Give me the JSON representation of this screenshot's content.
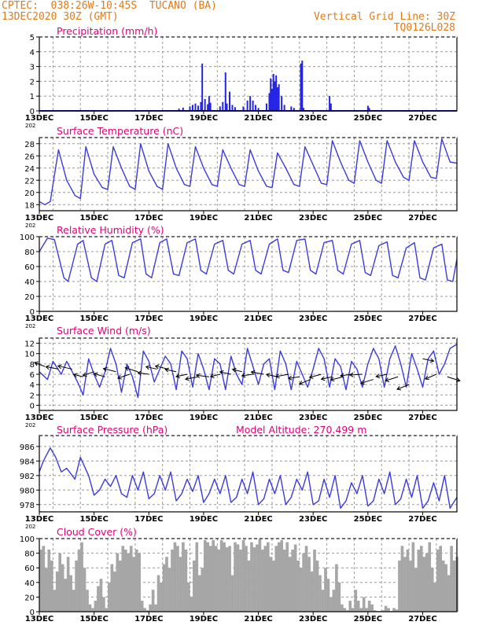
{
  "header": {
    "left_line1": "CPTEC:  038:26W-10:45S  TUCANO (BA)",
    "left_line2": "13DEC2020 30Z (GMT)",
    "right_line1": "Vertical Grid Line: 30Z",
    "right_line2": "TQ0126L028",
    "color": "#e07b1a"
  },
  "colors": {
    "title": "#e0007a",
    "line": "#3b3bdc",
    "bar": "#2424e6",
    "cloud": "#a6a6a6",
    "grid": "#9a9a9a",
    "arrow": "#000000"
  },
  "x_ticks": [
    "13DEC",
    "15DEC",
    "17DEC",
    "19DEC",
    "21DEC",
    "23DEC",
    "25DEC",
    "27DEC"
  ],
  "year_stub": "202",
  "chart_data": [
    {
      "type": "bar",
      "title": "Precipitation (mm/h)",
      "ylim": [
        0,
        5
      ],
      "yticks": [
        0,
        1,
        2,
        3,
        4,
        5
      ],
      "xlim": [
        0,
        15.25
      ],
      "events": [
        [
          5.1,
          0.15
        ],
        [
          5.25,
          0.22
        ],
        [
          5.5,
          0.3
        ],
        [
          5.6,
          0.4
        ],
        [
          5.7,
          0.5
        ],
        [
          5.8,
          0.35
        ],
        [
          5.9,
          0.6
        ],
        [
          5.95,
          3.2
        ],
        [
          6.05,
          0.8
        ],
        [
          6.15,
          0.45
        ],
        [
          6.2,
          1.0
        ],
        [
          6.25,
          0.55
        ],
        [
          6.6,
          0.3
        ],
        [
          6.7,
          0.6
        ],
        [
          6.8,
          2.6
        ],
        [
          6.85,
          0.5
        ],
        [
          6.95,
          1.3
        ],
        [
          7.05,
          0.4
        ],
        [
          7.15,
          0.25
        ],
        [
          7.45,
          0.3
        ],
        [
          7.6,
          0.7
        ],
        [
          7.7,
          1.0
        ],
        [
          7.8,
          0.7
        ],
        [
          7.9,
          0.4
        ],
        [
          8.0,
          0.2
        ],
        [
          8.3,
          0.5
        ],
        [
          8.4,
          1.2
        ],
        [
          8.45,
          2.2
        ],
        [
          8.5,
          1.5
        ],
        [
          8.55,
          2.5
        ],
        [
          8.6,
          2.0
        ],
        [
          8.65,
          2.4
        ],
        [
          8.7,
          1.6
        ],
        [
          8.75,
          1.8
        ],
        [
          8.85,
          1.0
        ],
        [
          8.95,
          0.4
        ],
        [
          9.2,
          0.3
        ],
        [
          9.3,
          0.2
        ],
        [
          9.55,
          3.2
        ],
        [
          9.6,
          3.4
        ],
        [
          9.65,
          0.2
        ],
        [
          10.6,
          1.0
        ],
        [
          10.65,
          0.5
        ],
        [
          12.0,
          0.35
        ],
        [
          12.05,
          0.2
        ]
      ]
    },
    {
      "type": "line",
      "title": "Surface Temperature (nC)",
      "ylim": [
        17,
        29
      ],
      "yticks": [
        18,
        20,
        22,
        24,
        26,
        28
      ],
      "xlim": [
        0,
        15.25
      ],
      "x": [
        0,
        0.2,
        0.4,
        0.7,
        1.0,
        1.3,
        1.5,
        1.7,
        2.0,
        2.3,
        2.5,
        2.7,
        3.0,
        3.3,
        3.5,
        3.7,
        4.0,
        4.3,
        4.5,
        4.7,
        5.0,
        5.3,
        5.5,
        5.7,
        6.0,
        6.3,
        6.5,
        6.7,
        7.0,
        7.3,
        7.5,
        7.7,
        8.0,
        8.3,
        8.5,
        8.7,
        9.0,
        9.3,
        9.5,
        9.7,
        10.0,
        10.3,
        10.5,
        10.7,
        11.0,
        11.3,
        11.5,
        11.7,
        12.0,
        12.3,
        12.5,
        12.7,
        13.0,
        13.3,
        13.5,
        13.7,
        14.0,
        14.3,
        14.5,
        14.7,
        15.0,
        15.25
      ],
      "y": [
        18.5,
        18.0,
        18.5,
        27.0,
        22.0,
        19.5,
        19.0,
        27.5,
        23.0,
        20.8,
        20.5,
        27.5,
        24.0,
        21.0,
        20.5,
        28.0,
        23.5,
        21.0,
        20.5,
        28.0,
        24.0,
        21.3,
        21.0,
        27.5,
        24.0,
        21.3,
        21.0,
        27.0,
        24.0,
        21.3,
        21.0,
        27.0,
        23.5,
        21.0,
        20.8,
        26.5,
        24.0,
        21.3,
        21.0,
        27.5,
        24.5,
        21.5,
        21.3,
        28.5,
        25.0,
        22.0,
        21.5,
        28.5,
        25.0,
        22.0,
        21.5,
        28.5,
        25.0,
        22.5,
        22.0,
        28.5,
        25.0,
        22.5,
        22.3,
        28.8,
        25.0,
        24.8
      ]
    },
    {
      "type": "line",
      "title": "Relative Humidity (%)",
      "ylim": [
        0,
        100
      ],
      "yticks": [
        0,
        20,
        40,
        60,
        80,
        100
      ],
      "xlim": [
        0,
        15.25
      ],
      "x": [
        0,
        0.3,
        0.55,
        0.9,
        1.05,
        1.4,
        1.6,
        1.9,
        2.1,
        2.4,
        2.65,
        2.9,
        3.1,
        3.4,
        3.7,
        3.9,
        4.1,
        4.4,
        4.65,
        4.9,
        5.1,
        5.4,
        5.7,
        5.9,
        6.1,
        6.4,
        6.7,
        6.9,
        7.1,
        7.4,
        7.7,
        7.9,
        8.1,
        8.4,
        8.7,
        8.9,
        9.1,
        9.4,
        9.7,
        9.9,
        10.1,
        10.4,
        10.7,
        10.9,
        11.1,
        11.4,
        11.7,
        11.9,
        12.1,
        12.4,
        12.7,
        12.9,
        13.1,
        13.4,
        13.7,
        13.9,
        14.1,
        14.4,
        14.7,
        14.9,
        15.1,
        15.25
      ],
      "y": [
        80,
        98,
        96,
        45,
        40,
        90,
        95,
        45,
        40,
        90,
        95,
        48,
        45,
        92,
        97,
        50,
        45,
        92,
        97,
        50,
        48,
        92,
        97,
        55,
        50,
        90,
        95,
        55,
        50,
        90,
        95,
        55,
        50,
        90,
        97,
        55,
        52,
        95,
        97,
        55,
        50,
        92,
        95,
        55,
        50,
        90,
        95,
        52,
        48,
        88,
        93,
        48,
        45,
        85,
        92,
        45,
        42,
        85,
        90,
        42,
        40,
        70
      ]
    },
    {
      "type": "line",
      "title": "Surface Wind (m/s)",
      "ylim": [
        -1,
        13
      ],
      "yticks": [
        0,
        2,
        4,
        6,
        8,
        10,
        12
      ],
      "xlim": [
        0,
        15.25
      ],
      "x": [
        0,
        0.3,
        0.5,
        0.8,
        1.0,
        1.2,
        1.4,
        1.6,
        1.8,
        2.0,
        2.2,
        2.4,
        2.6,
        2.8,
        3.0,
        3.2,
        3.4,
        3.6,
        3.8,
        4.0,
        4.2,
        4.4,
        4.6,
        4.8,
        5.0,
        5.2,
        5.4,
        5.6,
        5.8,
        6.0,
        6.2,
        6.4,
        6.6,
        6.8,
        7.0,
        7.2,
        7.4,
        7.6,
        7.8,
        8.0,
        8.2,
        8.4,
        8.6,
        8.8,
        9.0,
        9.2,
        9.4,
        9.6,
        9.8,
        10.0,
        10.2,
        10.4,
        10.6,
        10.8,
        11.0,
        11.2,
        11.4,
        11.6,
        11.8,
        12.0,
        12.2,
        12.4,
        12.6,
        12.8,
        13.0,
        13.2,
        13.4,
        13.6,
        13.8,
        14.0,
        14.2,
        14.4,
        14.6,
        14.8,
        15.0,
        15.25
      ],
      "y": [
        6.5,
        5.0,
        8.5,
        6.0,
        8.5,
        6.5,
        4.5,
        2.0,
        9.0,
        6.0,
        3.5,
        6.5,
        11.0,
        8.0,
        2.5,
        8.0,
        5.5,
        1.5,
        10.5,
        8.5,
        4.5,
        7.0,
        9.5,
        8.0,
        3.0,
        10.5,
        9.0,
        3.5,
        10.0,
        7.0,
        3.0,
        9.0,
        8.0,
        3.0,
        9.5,
        6.0,
        4.0,
        11.0,
        7.5,
        4.0,
        8.0,
        9.0,
        3.0,
        10.5,
        8.0,
        3.0,
        8.5,
        6.0,
        3.5,
        7.0,
        11.0,
        9.0,
        3.5,
        9.0,
        7.5,
        3.0,
        8.5,
        7.0,
        3.5,
        8.0,
        11.0,
        9.0,
        3.5,
        9.0,
        11.5,
        8.0,
        3.5,
        10.0,
        7.0,
        3.5,
        9.0,
        10.5,
        6.0,
        8.0,
        11.0,
        11.8
      ],
      "vectors": [
        [
          0.2,
          7.5,
          -13,
          -5
        ],
        [
          0.7,
          7.0,
          -16,
          -3
        ],
        [
          1.2,
          7.0,
          -18,
          -4
        ],
        [
          1.6,
          5.5,
          -12,
          -3
        ],
        [
          2.0,
          6.5,
          -14,
          5
        ],
        [
          2.4,
          5.5,
          -14,
          -4
        ],
        [
          2.8,
          6.5,
          -16,
          -4
        ],
        [
          3.3,
          6.0,
          -15,
          5
        ],
        [
          3.6,
          6.5,
          -16,
          -5
        ],
        [
          4.0,
          6.0,
          -14,
          -2
        ],
        [
          4.3,
          7.0,
          -14,
          -3
        ],
        [
          4.7,
          7.0,
          -16,
          -4
        ],
        [
          5.0,
          6.5,
          -14,
          -3
        ],
        [
          5.4,
          6.0,
          -14,
          3
        ],
        [
          5.8,
          5.5,
          -16,
          3
        ],
        [
          6.2,
          5.5,
          -16,
          -2
        ],
        [
          6.6,
          6.0,
          -12,
          3
        ],
        [
          7.0,
          6.0,
          -14,
          -3
        ],
        [
          7.4,
          6.5,
          -12,
          -3
        ],
        [
          7.8,
          6.0,
          -14,
          2
        ],
        [
          8.2,
          6.0,
          -16,
          -3
        ],
        [
          8.7,
          5.5,
          -14,
          -3
        ],
        [
          9.1,
          6.0,
          -16,
          3
        ],
        [
          9.5,
          5.5,
          -14,
          2
        ],
        [
          9.9,
          5.0,
          -14,
          6
        ],
        [
          10.3,
          6.0,
          -15,
          4
        ],
        [
          10.7,
          5.5,
          -14,
          3
        ],
        [
          11.1,
          5.5,
          -16,
          4
        ],
        [
          11.4,
          6.0,
          -14,
          2
        ],
        [
          11.8,
          6.0,
          -16,
          1
        ],
        [
          12.2,
          5.0,
          -16,
          5
        ],
        [
          12.7,
          6.0,
          -14,
          3
        ],
        [
          13.1,
          5.5,
          -16,
          5
        ],
        [
          13.5,
          4.0,
          -15,
          6
        ],
        [
          14.0,
          9.0,
          14,
          3
        ],
        [
          14.5,
          6.0,
          -14,
          6
        ],
        [
          14.9,
          5.5,
          16,
          5
        ]
      ]
    },
    {
      "type": "line",
      "title": "Surface Pressure (hPa)",
      "annotation": "Model Altitude: 270.499 m",
      "ylim": [
        977,
        987.5
      ],
      "yticks": [
        978,
        980,
        982,
        984,
        986
      ],
      "xlim": [
        0,
        15.25
      ],
      "x": [
        0,
        0.15,
        0.4,
        0.6,
        0.8,
        1.0,
        1.3,
        1.5,
        1.8,
        2.0,
        2.2,
        2.4,
        2.6,
        2.8,
        3.0,
        3.2,
        3.4,
        3.6,
        3.8,
        4.0,
        4.2,
        4.4,
        4.6,
        4.8,
        5.0,
        5.2,
        5.4,
        5.6,
        5.8,
        6.0,
        6.2,
        6.4,
        6.6,
        6.8,
        7.0,
        7.2,
        7.4,
        7.6,
        7.8,
        8.0,
        8.2,
        8.4,
        8.6,
        8.8,
        9.0,
        9.2,
        9.4,
        9.6,
        9.8,
        10.0,
        10.2,
        10.4,
        10.6,
        10.8,
        11.0,
        11.2,
        11.4,
        11.6,
        11.8,
        12.0,
        12.2,
        12.4,
        12.6,
        12.8,
        13.0,
        13.2,
        13.4,
        13.6,
        13.8,
        14.0,
        14.2,
        14.4,
        14.6,
        14.8,
        15.0,
        15.25
      ],
      "y": [
        982.5,
        984.0,
        985.8,
        984.5,
        982.5,
        983.0,
        981.5,
        984.5,
        982.0,
        979.3,
        980.0,
        981.5,
        980.5,
        982.0,
        979.5,
        979.0,
        982.0,
        980.0,
        982.5,
        978.8,
        979.5,
        982.0,
        980.0,
        982.5,
        978.5,
        979.5,
        981.5,
        979.8,
        982.0,
        978.3,
        979.5,
        981.5,
        979.5,
        982.0,
        978.3,
        979.0,
        981.5,
        979.5,
        982.5,
        978.0,
        978.8,
        981.5,
        979.5,
        982.0,
        978.0,
        979.0,
        981.5,
        980.0,
        982.5,
        978.0,
        978.5,
        981.5,
        979.0,
        982.0,
        977.5,
        978.5,
        981.0,
        979.5,
        982.0,
        977.8,
        978.5,
        981.5,
        979.5,
        982.5,
        978.0,
        978.8,
        981.5,
        979.0,
        982.0,
        977.5,
        978.5,
        981.0,
        978.5,
        982.0,
        977.5,
        979.0
      ]
    },
    {
      "type": "area",
      "title": "Cloud Cover (%)",
      "ylim": [
        0,
        100
      ],
      "yticks": [
        0,
        20,
        40,
        60,
        80,
        100
      ],
      "xlim": [
        0,
        15.25
      ],
      "x": [
        0,
        0.1,
        0.2,
        0.3,
        0.4,
        0.5,
        0.6,
        0.7,
        0.8,
        0.9,
        1.0,
        1.1,
        1.2,
        1.3,
        1.4,
        1.5,
        1.6,
        1.7,
        1.8,
        1.9,
        2.0,
        2.1,
        2.2,
        2.3,
        2.4,
        2.5,
        2.6,
        2.7,
        2.8,
        2.9,
        3.0,
        3.1,
        3.2,
        3.3,
        3.4,
        3.5,
        3.6,
        3.7,
        3.8,
        3.9,
        4.0,
        4.1,
        4.2,
        4.3,
        4.4,
        4.5,
        4.6,
        4.7,
        4.8,
        4.9,
        5.0,
        5.1,
        5.2,
        5.3,
        5.4,
        5.5,
        5.6,
        5.7,
        5.8,
        5.9,
        6.0,
        6.1,
        6.2,
        6.3,
        6.4,
        6.5,
        6.6,
        6.7,
        6.8,
        6.9,
        7.0,
        7.1,
        7.2,
        7.3,
        7.4,
        7.5,
        7.6,
        7.7,
        7.8,
        7.9,
        8.0,
        8.1,
        8.2,
        8.3,
        8.4,
        8.5,
        8.6,
        8.7,
        8.8,
        8.9,
        9.0,
        9.1,
        9.2,
        9.3,
        9.4,
        9.5,
        9.6,
        9.7,
        9.8,
        9.9,
        10.0,
        10.1,
        10.2,
        10.3,
        10.4,
        10.5,
        10.6,
        10.7,
        10.8,
        10.9,
        11.0,
        11.1,
        11.2,
        11.3,
        11.4,
        11.5,
        11.6,
        11.7,
        11.8,
        11.9,
        12.0,
        12.1,
        12.2,
        12.3,
        12.4,
        12.5,
        12.6,
        12.7,
        12.8,
        12.9,
        13.0,
        13.1,
        13.2,
        13.3,
        13.4,
        13.5,
        13.6,
        13.7,
        13.8,
        13.9,
        14.0,
        14.1,
        14.2,
        14.3,
        14.4,
        14.5,
        14.6,
        14.7,
        14.8,
        14.9,
        15.0,
        15.1,
        15.2
      ],
      "y": [
        85,
        90,
        60,
        85,
        70,
        30,
        55,
        80,
        65,
        45,
        75,
        50,
        30,
        70,
        85,
        95,
        60,
        30,
        10,
        5,
        15,
        35,
        45,
        20,
        5,
        40,
        65,
        55,
        80,
        70,
        90,
        85,
        80,
        90,
        75,
        85,
        80,
        15,
        5,
        2,
        10,
        30,
        10,
        50,
        40,
        65,
        75,
        60,
        85,
        95,
        90,
        75,
        95,
        85,
        40,
        20,
        70,
        95,
        50,
        60,
        98,
        95,
        90,
        98,
        90,
        85,
        98,
        95,
        88,
        90,
        50,
        95,
        92,
        85,
        98,
        90,
        70,
        95,
        88,
        92,
        100,
        85,
        90,
        95,
        75,
        70,
        90,
        95,
        98,
        85,
        95,
        75,
        85,
        92,
        70,
        60,
        80,
        90,
        75,
        55,
        85,
        70,
        50,
        30,
        60,
        45,
        20,
        30,
        65,
        40,
        10,
        5,
        2,
        15,
        5,
        30,
        15,
        5,
        20,
        5,
        15,
        10,
        2,
        1,
        1,
        2,
        8,
        5,
        1,
        5,
        3,
        70,
        90,
        75,
        85,
        70,
        95,
        60,
        85,
        90,
        75,
        80,
        95,
        60,
        40,
        85,
        90,
        70,
        65,
        50,
        90,
        70,
        75
      ]
    }
  ]
}
